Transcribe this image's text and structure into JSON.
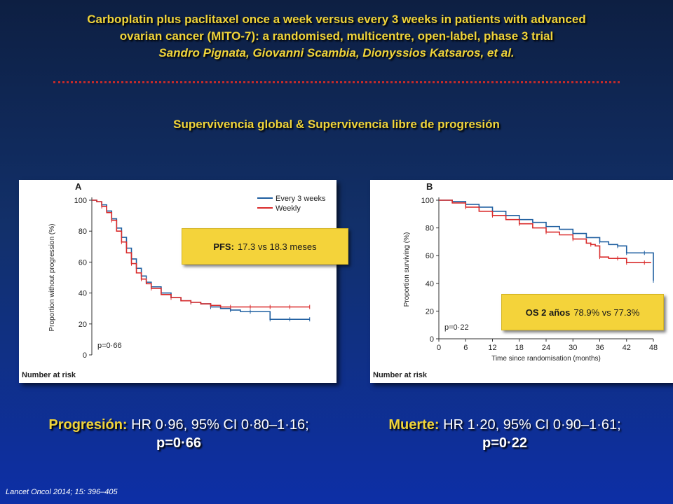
{
  "slide": {
    "title_line1": "Carboplatin plus paclitaxel once a week versus every 3 weeks in patients with advanced",
    "title_line2": "ovarian cancer (MITO-7): a randomised, multicentre, open-label, phase 3 trial",
    "authors": "Sandro Pignata, Giovanni Scambia, Dionyssios Katsaros, et al.",
    "subtitle": "Supervivencia global & Supervivencia libre de progresión",
    "citation": "Lancet Oncol 2014; 15: 396–405"
  },
  "callouts": {
    "pfs_label": "PFS:",
    "pfs_value": "17.3 vs 18.3 meses",
    "os_label": "OS 2 años",
    "os_value": "78.9% vs 77.3%"
  },
  "results": {
    "progression_label": "Progresión:",
    "progression_text": "HR 0·96, 95% CI 0·80–1·16;",
    "progression_p": "p=0·66",
    "death_label": "Muerte:",
    "death_text": "HR 1·20, 95% CI 0·90–1·61;",
    "death_p": "p=0·22"
  },
  "colors": {
    "every3weeks": "#1f5fa0",
    "weekly": "#d92b2b",
    "accent_yellow": "#f0d43a"
  },
  "chart_data": [
    {
      "type": "line",
      "panel_letter": "A",
      "ylabel": "Proportion without progression (%)",
      "xlabel": "",
      "ylim": [
        0,
        100
      ],
      "y_ticks": [
        "0",
        "20",
        "40",
        "60",
        "80",
        "100"
      ],
      "x_ticks": [],
      "xlim": [
        0,
        48
      ],
      "legend_position": "top-right",
      "p_value": "p=0·66",
      "risk_label": "Number at risk",
      "series": [
        {
          "name": "Every 3 weeks",
          "color": "#1f5fa0",
          "x": [
            0,
            1,
            2,
            3,
            4,
            5,
            6,
            7,
            8,
            9,
            10,
            11,
            12,
            14,
            16,
            18,
            20,
            22,
            24,
            26,
            28,
            30,
            32,
            34,
            36,
            38,
            40,
            42,
            44
          ],
          "y": [
            100,
            99,
            97,
            93,
            88,
            82,
            76,
            69,
            62,
            56,
            51,
            47,
            44,
            40,
            37,
            35,
            34,
            33,
            31,
            30,
            29,
            28,
            28,
            28,
            23,
            23,
            23,
            23,
            23
          ]
        },
        {
          "name": "Weekly",
          "color": "#d92b2b",
          "x": [
            0,
            1,
            2,
            3,
            4,
            5,
            6,
            7,
            8,
            9,
            10,
            11,
            12,
            14,
            16,
            18,
            20,
            22,
            24,
            26,
            28,
            30,
            32,
            34,
            36,
            38,
            40,
            42,
            44
          ],
          "y": [
            100,
            99,
            96,
            92,
            87,
            80,
            73,
            66,
            59,
            53,
            49,
            46,
            43,
            39,
            37,
            35,
            34,
            33,
            32,
            31,
            31,
            31,
            31,
            31,
            31,
            31,
            31,
            31,
            31
          ]
        }
      ]
    },
    {
      "type": "line",
      "panel_letter": "B",
      "ylabel": "Proportion surviving (%)",
      "xlabel": "Time since randomisation (months)",
      "ylim": [
        0,
        100
      ],
      "xlim": [
        0,
        48
      ],
      "y_ticks": [
        "0",
        "20",
        "40",
        "60",
        "80",
        "100"
      ],
      "x_ticks": [
        "0",
        "6",
        "12",
        "18",
        "24",
        "30",
        "36",
        "42",
        "48"
      ],
      "p_value": "p=0·22",
      "risk_label": "Number at risk",
      "series": [
        {
          "name": "Every 3 weeks",
          "color": "#1f5fa0",
          "x": [
            0,
            3,
            6,
            9,
            12,
            15,
            18,
            21,
            24,
            27,
            30,
            33,
            36,
            38,
            40,
            41,
            42,
            44,
            46,
            47.5,
            48
          ],
          "y": [
            100,
            99,
            97,
            95,
            92,
            89,
            86,
            84,
            81,
            79,
            76,
            73,
            70,
            68,
            67,
            67,
            62,
            62,
            62,
            62,
            42
          ]
        },
        {
          "name": "Weekly",
          "color": "#d92b2b",
          "x": [
            0,
            3,
            6,
            9,
            12,
            15,
            18,
            21,
            24,
            27,
            30,
            33,
            34,
            35,
            36,
            38,
            40,
            41,
            42,
            44,
            46,
            47.5
          ],
          "y": [
            100,
            98,
            95,
            92,
            89,
            86,
            83,
            80,
            77,
            75,
            72,
            69,
            68,
            67,
            59,
            58,
            58,
            58,
            55,
            55,
            55,
            55
          ]
        }
      ]
    }
  ]
}
